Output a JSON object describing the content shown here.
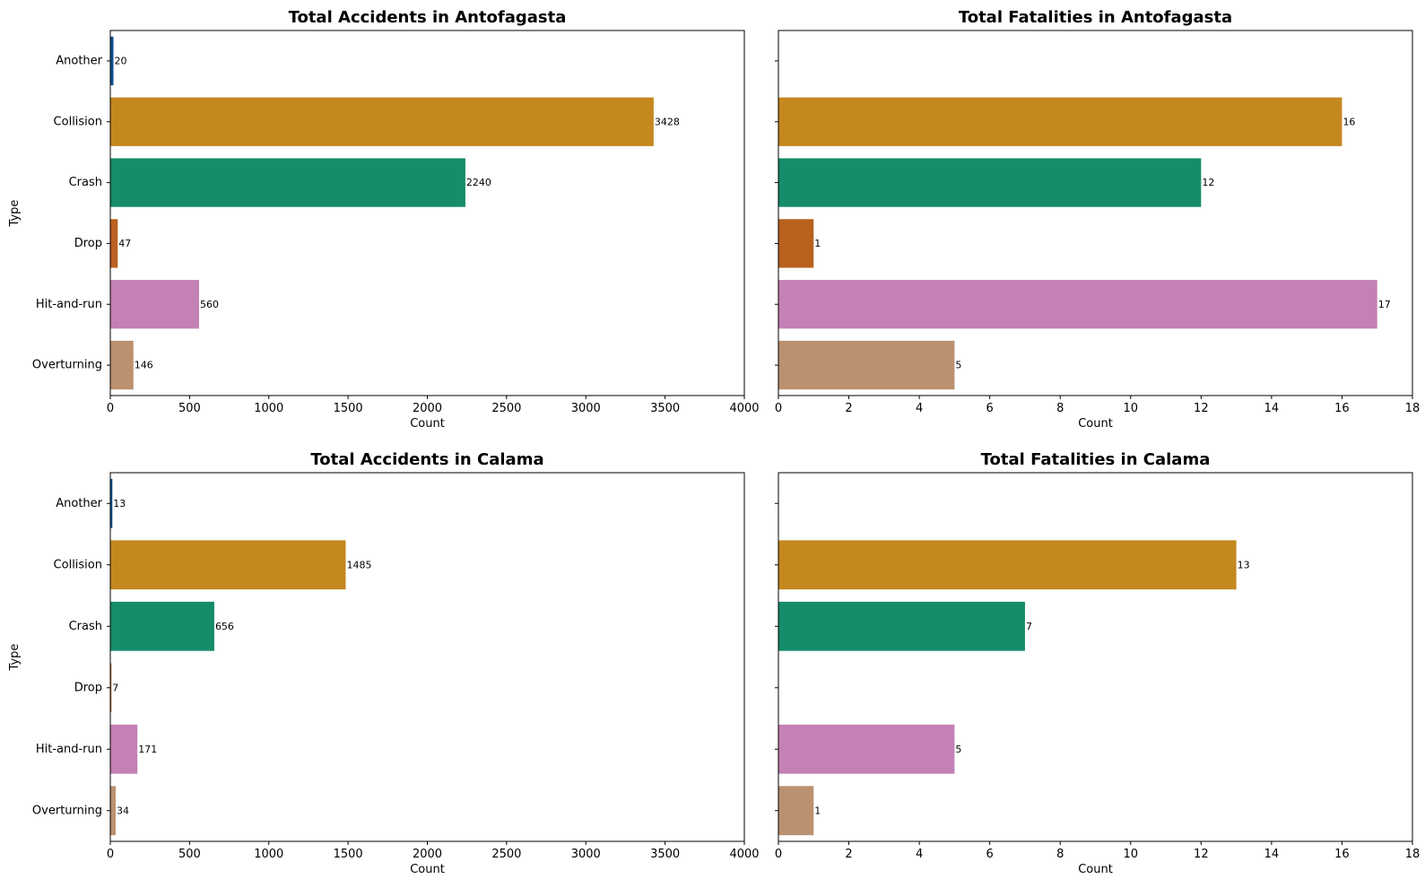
{
  "chart_data": [
    {
      "type": "bar",
      "orientation": "horizontal",
      "title": "Total Accidents in Antofagasta",
      "xlabel": "Count",
      "ylabel": "Type",
      "xlim": [
        0,
        4000
      ],
      "xticks": [
        0,
        500,
        1000,
        1500,
        2000,
        2500,
        3000,
        3500,
        4000
      ],
      "categories": [
        "Another",
        "Collision",
        "Crash",
        "Drop",
        "Hit-and-run",
        "Overturning"
      ],
      "values": [
        20,
        3428,
        2240,
        47,
        560,
        146
      ],
      "colors": [
        "#0b4f8c",
        "#c4881f",
        "#158c6a",
        "#b9611f",
        "#c381b5",
        "#bb9170"
      ],
      "show_category_labels": true,
      "grid": false
    },
    {
      "type": "bar",
      "orientation": "horizontal",
      "title": "Total Fatalities in Antofagasta",
      "xlabel": "Count",
      "ylabel": "",
      "xlim": [
        0,
        18
      ],
      "xticks": [
        0,
        2,
        4,
        6,
        8,
        10,
        12,
        14,
        16,
        18
      ],
      "categories": [
        "Another",
        "Collision",
        "Crash",
        "Drop",
        "Hit-and-run",
        "Overturning"
      ],
      "values": [
        null,
        16,
        12,
        1,
        17,
        5
      ],
      "colors": [
        "#0b4f8c",
        "#c4881f",
        "#158c6a",
        "#b9611f",
        "#c381b5",
        "#bb9170"
      ],
      "show_category_labels": false,
      "grid": false
    },
    {
      "type": "bar",
      "orientation": "horizontal",
      "title": "Total Accidents in Calama",
      "xlabel": "Count",
      "ylabel": "Type",
      "xlim": [
        0,
        4000
      ],
      "xticks": [
        0,
        500,
        1000,
        1500,
        2000,
        2500,
        3000,
        3500,
        4000
      ],
      "categories": [
        "Another",
        "Collision",
        "Crash",
        "Drop",
        "Hit-and-run",
        "Overturning"
      ],
      "values": [
        13,
        1485,
        656,
        7,
        171,
        34
      ],
      "colors": [
        "#0b4f8c",
        "#c4881f",
        "#158c6a",
        "#b9611f",
        "#c381b5",
        "#bb9170"
      ],
      "show_category_labels": true,
      "grid": false
    },
    {
      "type": "bar",
      "orientation": "horizontal",
      "title": "Total Fatalities in Calama",
      "xlabel": "Count",
      "ylabel": "",
      "xlim": [
        0,
        18
      ],
      "xticks": [
        0,
        2,
        4,
        6,
        8,
        10,
        12,
        14,
        16,
        18
      ],
      "categories": [
        "Another",
        "Collision",
        "Crash",
        "Drop",
        "Hit-and-run",
        "Overturning"
      ],
      "values": [
        null,
        13,
        7,
        null,
        5,
        1
      ],
      "colors": [
        "#0b4f8c",
        "#c4881f",
        "#158c6a",
        "#b9611f",
        "#c381b5",
        "#bb9170"
      ],
      "show_category_labels": false,
      "grid": false
    }
  ]
}
